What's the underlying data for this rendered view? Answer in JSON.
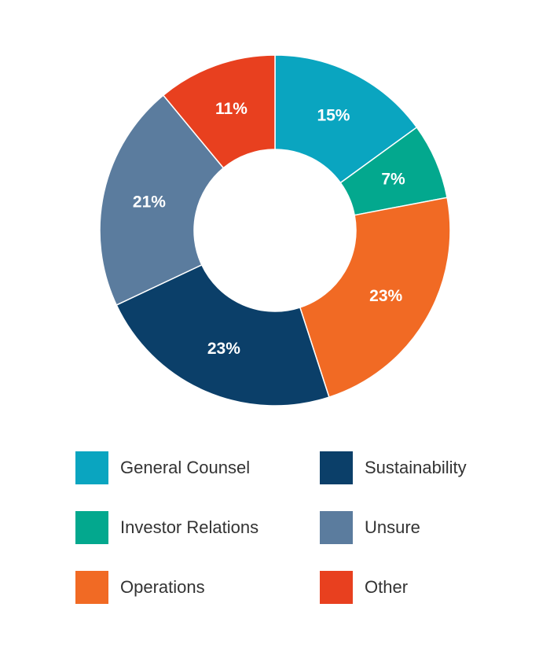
{
  "chart_data": {
    "type": "pie",
    "donut": true,
    "values": [
      15,
      7,
      23,
      23,
      21,
      11
    ],
    "labels": [
      "15%",
      "7%",
      "23%",
      "23%",
      "21%",
      "11%"
    ],
    "legend": [
      {
        "label": "General Counsel",
        "color": "#0aa5c0"
      },
      {
        "label": "Investor Relations",
        "color": "#03a88e"
      },
      {
        "label": "Operations",
        "color": "#f16a24"
      },
      {
        "label": "Sustainability",
        "color": "#0b3f69"
      },
      {
        "label": "Unsure",
        "color": "#5b7c9e"
      },
      {
        "label": "Other",
        "color": "#e8401f"
      }
    ],
    "legend_placement": "bottom"
  }
}
